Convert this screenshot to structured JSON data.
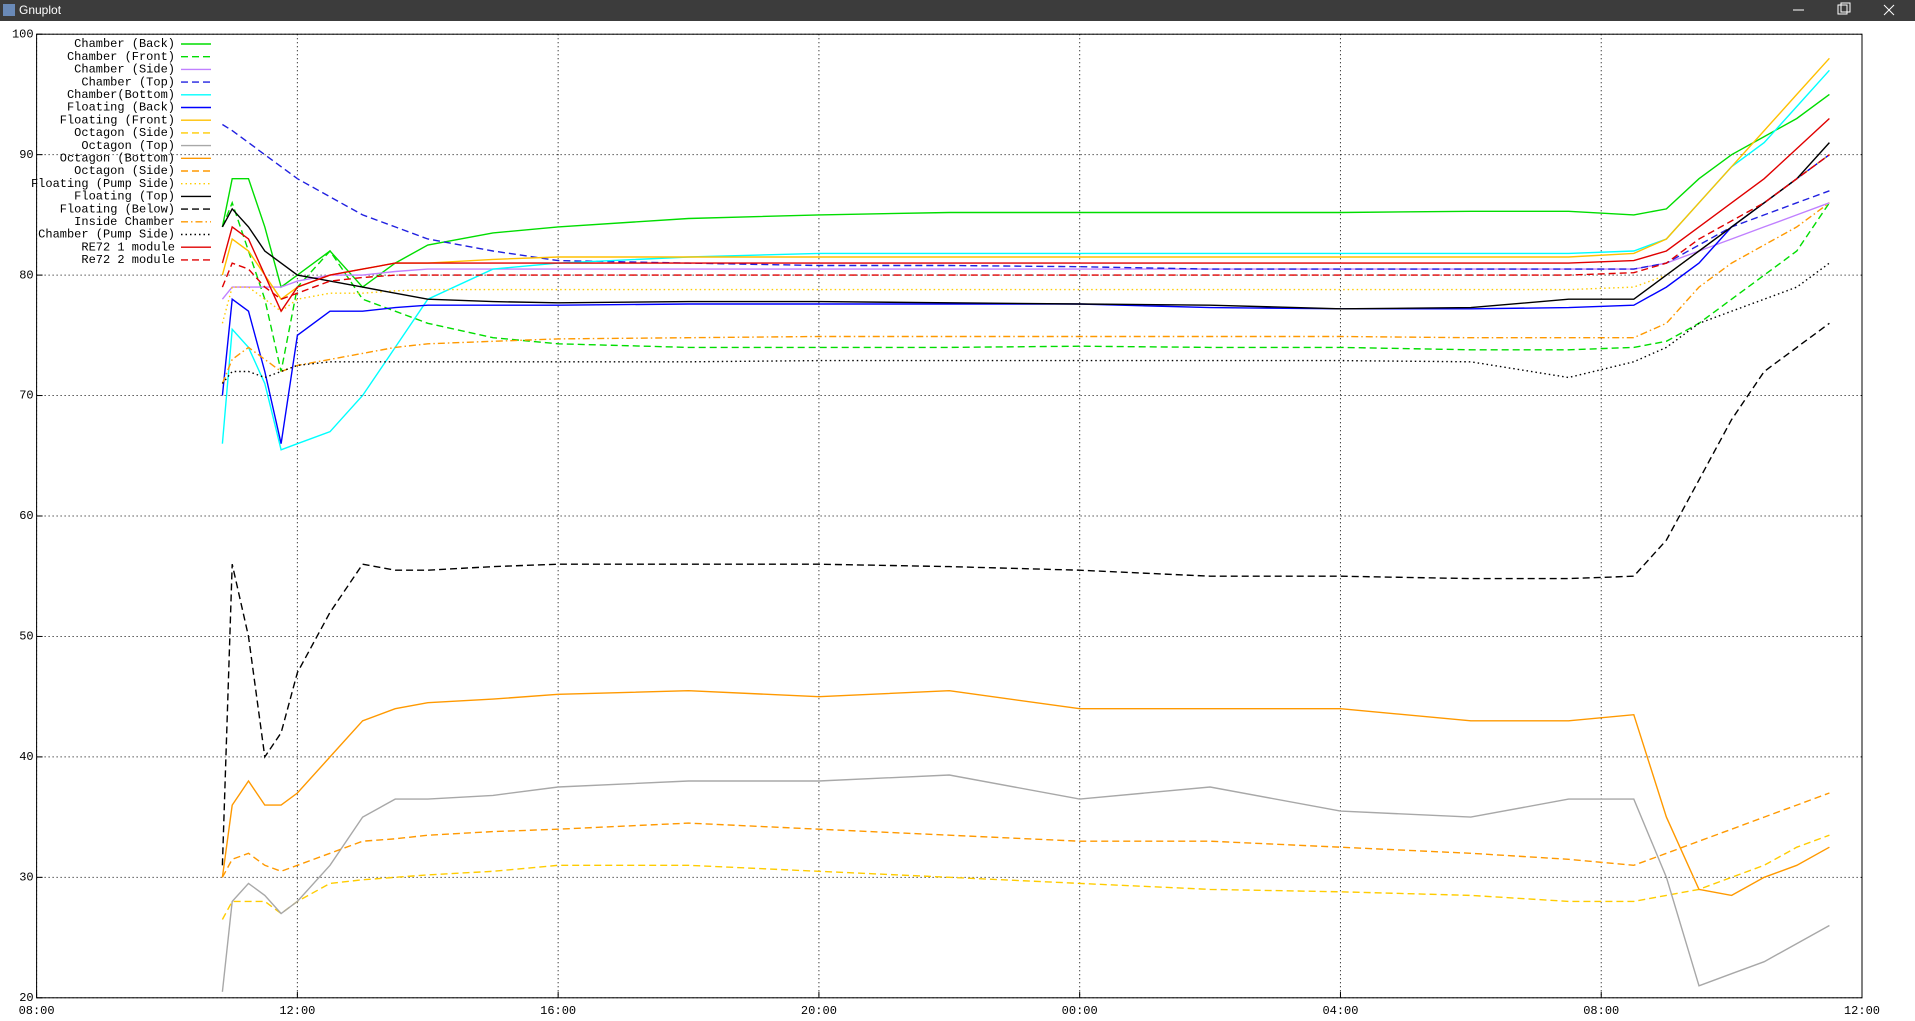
{
  "window": {
    "title": "Gnuplot"
  },
  "chart_data": {
    "type": "line",
    "grid": true,
    "legend": "top-left",
    "xlim": [
      8,
      36
    ],
    "xticks": [
      {
        "value": 8,
        "label": "08:00"
      },
      {
        "value": 12,
        "label": "12:00"
      },
      {
        "value": 16,
        "label": "16:00"
      },
      {
        "value": 20,
        "label": "20:00"
      },
      {
        "value": 24,
        "label": "00:00"
      },
      {
        "value": 28,
        "label": "04:00"
      },
      {
        "value": 32,
        "label": "08:00"
      },
      {
        "value": 36,
        "label": "12:00"
      }
    ],
    "ylim": [
      20,
      100
    ],
    "yticks": [
      20,
      30,
      40,
      50,
      60,
      70,
      80,
      90,
      100
    ],
    "x": [
      10.85,
      11,
      11.25,
      11.5,
      11.75,
      12,
      12.5,
      13,
      13.5,
      14,
      15,
      16,
      18,
      20,
      22,
      24,
      26,
      28,
      30,
      31.5,
      32.5,
      33,
      33.5,
      34,
      34.5,
      35,
      35.5
    ],
    "series": [
      {
        "name": "Chamber (Back)",
        "color": "#00dd00",
        "dash": "solid",
        "values": [
          84,
          88,
          88,
          84,
          79,
          80,
          82,
          79,
          81,
          82.5,
          83.5,
          84,
          84.7,
          85,
          85.2,
          85.2,
          85.2,
          85.2,
          85.3,
          85.3,
          85,
          85.5,
          88,
          90,
          91.5,
          93,
          95
        ]
      },
      {
        "name": "Chamber (Front)",
        "color": "#00dd00",
        "dash": "dashed",
        "values": [
          84,
          86,
          82,
          78,
          72,
          79,
          82,
          78,
          77,
          76,
          74.8,
          74.3,
          74,
          74,
          74,
          74.1,
          74,
          74,
          73.8,
          73.8,
          74,
          74.5,
          76,
          78,
          80,
          82,
          86
        ]
      },
      {
        "name": "Chamber (Side)",
        "color": "#c080ff",
        "dash": "solid",
        "values": [
          78,
          79,
          79,
          79,
          79,
          79.5,
          80,
          80,
          80.3,
          80.5,
          80.5,
          80.5,
          80.5,
          80.5,
          80.5,
          80.5,
          80.5,
          80.5,
          80.5,
          80.5,
          80.5,
          81,
          82,
          83,
          84,
          85,
          86
        ]
      },
      {
        "name": "Chamber (Top)",
        "color": "#2020e0",
        "dash": "dashed",
        "values": [
          92.5,
          92,
          91,
          90,
          89,
          88,
          86.5,
          85,
          84,
          83,
          82,
          81.2,
          81,
          80.8,
          80.8,
          80.7,
          80.5,
          80.5,
          80.5,
          80.5,
          80.5,
          81,
          82.5,
          84,
          85,
          86,
          87
        ]
      },
      {
        "name": "Chamber(Bottom)",
        "color": "#00ffff",
        "dash": "solid",
        "values": [
          66,
          75.5,
          74,
          71,
          65.5,
          66,
          67,
          70,
          74,
          78,
          80.5,
          81,
          81.5,
          81.8,
          81.8,
          81.8,
          81.8,
          81.8,
          81.8,
          81.8,
          82,
          83,
          86,
          89,
          91,
          94,
          97
        ]
      },
      {
        "name": "Floating (Back)",
        "color": "#0000ff",
        "dash": "solid",
        "values": [
          70,
          78,
          77,
          72,
          66,
          75,
          77,
          77,
          77.3,
          77.5,
          77.5,
          77.5,
          77.6,
          77.6,
          77.6,
          77.6,
          77.3,
          77.2,
          77.2,
          77.3,
          77.5,
          79,
          81,
          84,
          86,
          88,
          90
        ]
      },
      {
        "name": "Floating (Front)",
        "color": "#ffc000",
        "dash": "solid",
        "values": [
          80,
          83,
          82,
          80,
          78,
          79,
          80,
          80.5,
          81,
          81,
          81.3,
          81.5,
          81.5,
          81.5,
          81.5,
          81.5,
          81.5,
          81.5,
          81.5,
          81.5,
          81.8,
          83,
          86,
          89,
          92,
          95,
          98
        ]
      },
      {
        "name": "Octagon (Side)",
        "color": "#ffcc00",
        "dash": "dashed",
        "values": [
          26.5,
          28,
          28,
          28,
          27,
          28,
          29.5,
          29.8,
          30,
          30.2,
          30.5,
          31,
          31,
          30.5,
          30,
          29.5,
          29,
          28.8,
          28.5,
          28,
          28,
          28.5,
          29,
          30,
          31,
          32.5,
          33.5
        ]
      },
      {
        "name": "Octagon (Top)",
        "color": "#a8a8a8",
        "dash": "solid",
        "values": [
          20.5,
          28,
          29.5,
          28.5,
          27,
          28,
          31,
          35,
          36.5,
          36.5,
          36.8,
          37.5,
          38,
          38,
          38.5,
          36.5,
          37.5,
          35.5,
          35,
          36.5,
          36.5,
          30,
          21,
          22,
          23,
          24.5,
          26
        ]
      },
      {
        "name": "Octagon (Bottom)",
        "color": "#ff9900",
        "dash": "solid",
        "values": [
          30,
          36,
          38,
          36,
          36,
          37,
          40,
          43,
          44,
          44.5,
          44.8,
          45.2,
          45.5,
          45,
          45.5,
          44,
          44,
          44,
          43,
          43,
          43.5,
          35,
          29,
          28.5,
          30,
          31,
          32.5
        ]
      },
      {
        "name": "Octagon (Side)",
        "color": "#ff9900",
        "dash": "dashed",
        "values": [
          30,
          31.5,
          32,
          31,
          30.5,
          31,
          32,
          33,
          33.2,
          33.5,
          33.8,
          34,
          34.5,
          34,
          33.5,
          33,
          33,
          32.5,
          32,
          31.5,
          31,
          32,
          33,
          34,
          35,
          36,
          37
        ]
      },
      {
        "name": "Floating (Pump Side)",
        "color": "#ffcc00",
        "dash": "dotted",
        "values": [
          76,
          79,
          79,
          78,
          77,
          78,
          78.5,
          78.5,
          78.7,
          78.8,
          78.8,
          78.8,
          78.8,
          78.8,
          78.8,
          78.8,
          78.8,
          78.8,
          78.8,
          78.8,
          79,
          80,
          82,
          84,
          86,
          88,
          90
        ]
      },
      {
        "name": "Floating (Top)",
        "color": "#000000",
        "dash": "solid",
        "values": [
          84,
          85.5,
          84,
          82,
          81,
          80,
          79.5,
          79,
          78.5,
          78,
          77.8,
          77.7,
          77.8,
          77.8,
          77.7,
          77.6,
          77.5,
          77.2,
          77.3,
          78,
          78,
          80,
          82,
          84,
          86,
          88,
          91
        ]
      },
      {
        "name": "Floating (Below)",
        "color": "#000000",
        "dash": "dashed",
        "values": [
          31,
          56,
          50,
          40,
          42,
          47,
          52,
          56,
          55.5,
          55.5,
          55.8,
          56,
          56,
          56,
          55.8,
          55.5,
          55,
          55,
          54.8,
          54.8,
          55,
          58,
          63,
          68,
          72,
          74,
          76
        ]
      },
      {
        "name": "Inside Chamber",
        "color": "#ff9900",
        "dash": "dashdot",
        "values": [
          71,
          73,
          74,
          73,
          72,
          72.5,
          73,
          73.5,
          74,
          74.3,
          74.5,
          74.7,
          74.8,
          74.9,
          74.9,
          74.9,
          74.9,
          74.9,
          74.8,
          74.8,
          74.8,
          76,
          79,
          81,
          82.5,
          84,
          86
        ]
      },
      {
        "name": "Chamber (Pump Side)",
        "color": "#000000",
        "dash": "dotted",
        "values": [
          71,
          72,
          72,
          71.5,
          72,
          72.5,
          72.8,
          72.8,
          72.8,
          72.8,
          72.8,
          72.8,
          72.8,
          72.9,
          72.9,
          72.9,
          72.9,
          72.9,
          72.8,
          71.5,
          72.8,
          74,
          76,
          77,
          78,
          79,
          81
        ]
      },
      {
        "name": "RE72 1 module",
        "color": "#e00000",
        "dash": "solid",
        "values": [
          81,
          84,
          83,
          80,
          77,
          79,
          80,
          80.5,
          81,
          81,
          81,
          81,
          81,
          81,
          81,
          81,
          81,
          81,
          81,
          81,
          81.2,
          82,
          84,
          86,
          88,
          90.5,
          93
        ]
      },
      {
        "name": "Re72 2 module",
        "color": "#e00000",
        "dash": "dashed",
        "values": [
          79,
          81,
          80.5,
          79,
          78,
          78.5,
          79.5,
          79.8,
          80,
          80,
          80,
          80,
          80,
          80,
          80,
          80,
          80,
          80,
          80,
          80,
          80.2,
          81,
          83,
          84.5,
          86,
          88,
          90
        ]
      }
    ]
  }
}
